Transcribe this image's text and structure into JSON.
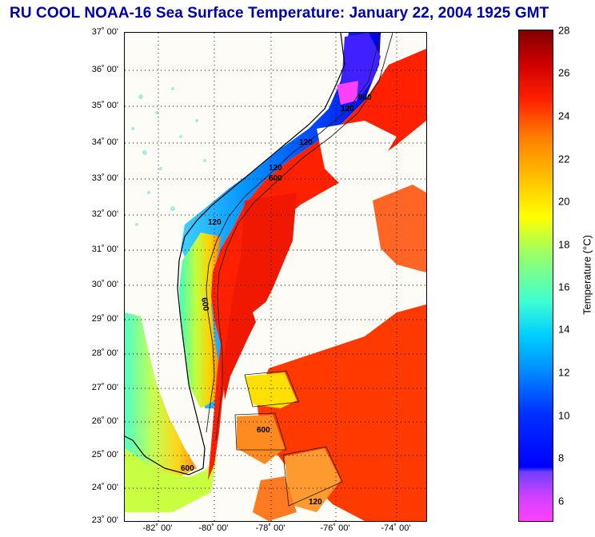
{
  "title": "RU COOL  NOAA-16  Sea Surface Temperature:  January 22, 2004 1925 GMT",
  "lat_labels": [
    "37˚ 00'",
    "36˚ 00'",
    "35˚ 00'",
    "34˚ 00'",
    "33˚ 00'",
    "32˚ 00'",
    "31˚ 00'",
    "30˚ 00'",
    "29˚ 00'",
    "28˚ 00'",
    "27˚ 00'",
    "26˚ 00'",
    "25˚ 00'",
    "24˚ 00'",
    "23˚ 00'"
  ],
  "lon_labels": [
    "-82˚ 00'",
    "-80˚ 00'",
    "-78˚ 00'",
    "-76˚ 00'",
    "-74˚ 00'"
  ],
  "colorbar": {
    "title": "Temperature (°C)",
    "ticks": [
      "28",
      "26",
      "24",
      "22",
      "20",
      "18",
      "16",
      "14",
      "12",
      "10",
      "8",
      "6"
    ]
  },
  "contour_labels": [
    "120",
    "600",
    "120",
    "600",
    "120",
    "600",
    "120",
    "600",
    "600",
    "120"
  ],
  "colors": {
    "title": "#0000a8",
    "gulf_stream": "#ff2000",
    "land": "#fdfcf6"
  }
}
